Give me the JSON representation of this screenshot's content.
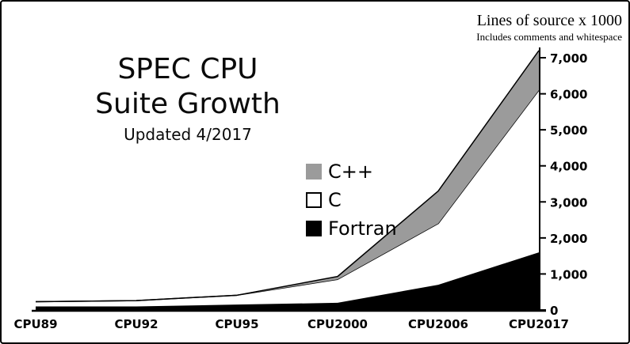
{
  "header": {
    "title_line1": "SPEC CPU",
    "title_line2": "Suite Growth",
    "subtitle": "Updated 4/2017"
  },
  "axis": {
    "ylabel": "Lines of source x 1000",
    "ylabel_note": "Includes comments and whitespace"
  },
  "legend": {
    "items": [
      {
        "label": "C++",
        "color": "#9b9b9b"
      },
      {
        "label": "C",
        "color": "#ffffff"
      },
      {
        "label": "Fortran",
        "color": "#000000"
      }
    ]
  },
  "chart_data": {
    "type": "area",
    "stacked": true,
    "title": "SPEC CPU Suite Growth",
    "subtitle": "Updated 4/2017",
    "ylabel": "Lines of source x 1000",
    "ylabel_note": "Includes comments and whitespace",
    "categories": [
      "CPU89",
      "CPU92",
      "CPU95",
      "CPU2000",
      "CPU2006",
      "CPU2017"
    ],
    "series": [
      {
        "name": "Fortran",
        "key": "fortran",
        "color": "#000000",
        "values": [
          100,
          100,
          150,
          200,
          700,
          1600
        ]
      },
      {
        "name": "C",
        "key": "c",
        "color": "#ffffff",
        "values": [
          130,
          160,
          260,
          650,
          1700,
          4500
        ]
      },
      {
        "name": "C++",
        "key": "cpp",
        "color": "#9b9b9b",
        "values": [
          0,
          0,
          0,
          80,
          900,
          1100
        ]
      }
    ],
    "stack_totals": [
      230,
      260,
      410,
      930,
      3300,
      7200
    ],
    "ylim": [
      0,
      7000
    ],
    "yticks": [
      0,
      1000,
      2000,
      3000,
      4000,
      5000,
      6000,
      7000
    ],
    "yticklabels": [
      "0",
      "1,000",
      "2,000",
      "3,000",
      "4,000",
      "5,000",
      "6,000",
      "7,000"
    ],
    "legend_position": "center",
    "grid": false
  }
}
